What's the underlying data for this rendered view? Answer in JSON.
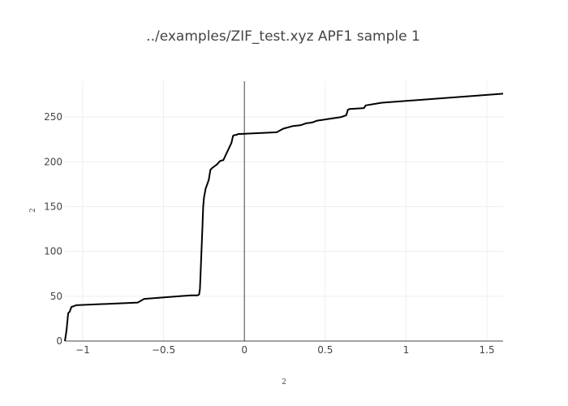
{
  "chart_data": {
    "type": "line",
    "title": "../examples/ZIF_test.xyz APF1 sample 1",
    "xlabel": "2",
    "ylabel": "2",
    "xlim": [
      -1.11,
      1.6
    ],
    "ylim": [
      0,
      290
    ],
    "x_ticks": [
      -1,
      -0.5,
      0,
      0.5,
      1,
      1.5
    ],
    "x_tick_labels": [
      "−1",
      "−0.5",
      "0",
      "0.5",
      "1",
      "1.5"
    ],
    "y_ticks": [
      0,
      50,
      100,
      150,
      200,
      250
    ],
    "y_tick_labels": [
      "0",
      "50",
      "100",
      "150",
      "200",
      "250"
    ],
    "grid": true,
    "line_color": "#000000",
    "series": [
      {
        "x": [
          -1.11,
          -1.1,
          -1.09,
          -1.08,
          -1.07,
          -1.04,
          -0.66,
          -0.62,
          -0.4,
          -0.33,
          -0.29,
          -0.28,
          -0.275,
          -0.27,
          -0.26,
          -0.255,
          -0.25,
          -0.24,
          -0.23,
          -0.22,
          -0.21,
          -0.2,
          -0.17,
          -0.15,
          -0.13,
          -0.08,
          -0.07,
          -0.06,
          -0.05,
          -0.04,
          0.2,
          0.24,
          0.3,
          0.35,
          0.38,
          0.42,
          0.45,
          0.6,
          0.63,
          0.64,
          0.65,
          0.74,
          0.75,
          0.85,
          1.6
        ],
        "y": [
          0,
          12,
          31,
          33,
          38,
          40,
          43,
          47,
          50,
          51,
          51,
          52,
          58,
          80,
          125,
          150,
          160,
          170,
          175,
          180,
          191,
          193,
          197,
          201,
          202,
          221,
          229,
          230,
          230,
          231,
          233,
          237,
          240,
          241,
          243,
          244,
          246,
          250,
          252,
          258,
          259,
          260,
          263,
          266,
          276
        ]
      }
    ]
  }
}
